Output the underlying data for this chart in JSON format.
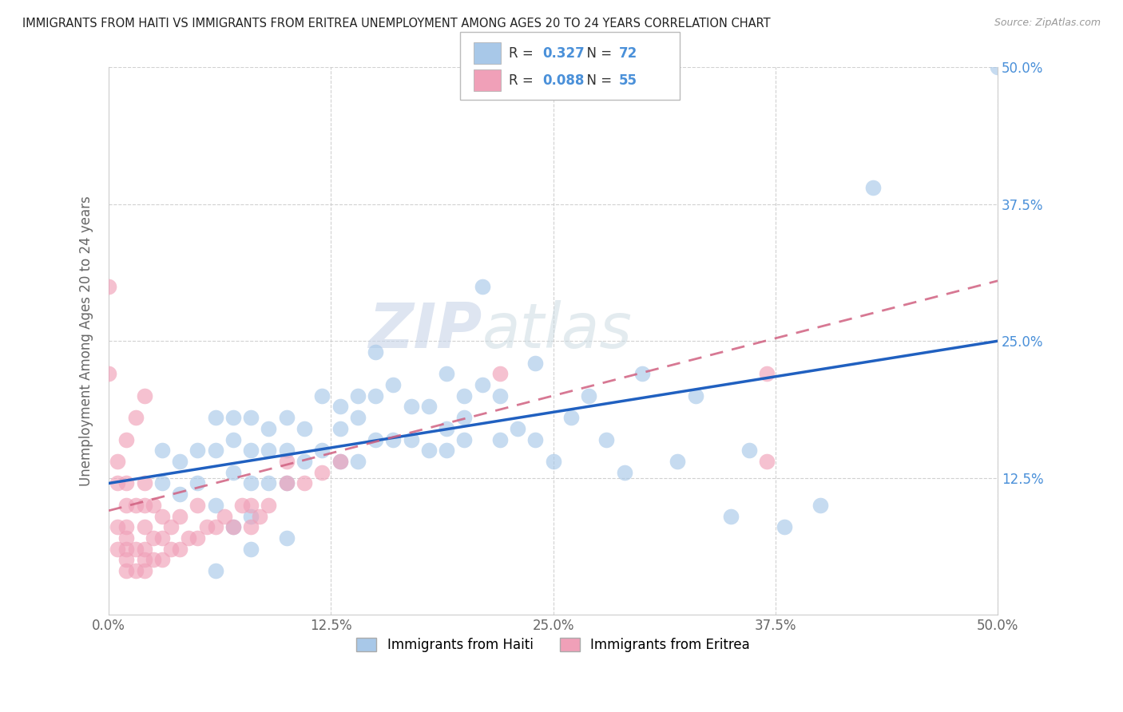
{
  "title": "IMMIGRANTS FROM HAITI VS IMMIGRANTS FROM ERITREA UNEMPLOYMENT AMONG AGES 20 TO 24 YEARS CORRELATION CHART",
  "source": "Source: ZipAtlas.com",
  "ylabel": "Unemployment Among Ages 20 to 24 years",
  "xlim": [
    0,
    0.5
  ],
  "ylim": [
    0,
    0.5
  ],
  "xtick_labels": [
    "0.0%",
    "",
    "",
    "",
    "",
    "12.5%",
    "",
    "",
    "",
    "",
    "25.0%",
    "",
    "",
    "",
    "",
    "37.5%",
    "",
    "",
    "",
    "",
    "50.0%"
  ],
  "xtick_vals": [
    0.0,
    0.025,
    0.05,
    0.075,
    0.1,
    0.125,
    0.15,
    0.175,
    0.2,
    0.225,
    0.25,
    0.275,
    0.3,
    0.325,
    0.35,
    0.375,
    0.4,
    0.425,
    0.45,
    0.475,
    0.5
  ],
  "xtick_major_labels": [
    "0.0%",
    "12.5%",
    "25.0%",
    "37.5%",
    "50.0%"
  ],
  "xtick_major_vals": [
    0.0,
    0.125,
    0.25,
    0.375,
    0.5
  ],
  "right_ytick_labels": [
    "50.0%",
    "37.5%",
    "25.0%",
    "12.5%"
  ],
  "right_ytick_vals": [
    0.5,
    0.375,
    0.25,
    0.125
  ],
  "haiti_color": "#a8c8e8",
  "eritrea_color": "#f0a0b8",
  "haiti_R": 0.327,
  "haiti_N": 72,
  "eritrea_R": 0.088,
  "eritrea_N": 55,
  "haiti_line_color": "#2060c0",
  "eritrea_line_color": "#d06080",
  "watermark_zip": "ZIP",
  "watermark_atlas": "atlas",
  "legend_haiti_label": "Immigrants from Haiti",
  "legend_eritrea_label": "Immigrants from Eritrea",
  "haiti_scatter_x": [
    0.5,
    0.43,
    0.4,
    0.38,
    0.35,
    0.33,
    0.3,
    0.28,
    0.27,
    0.26,
    0.25,
    0.24,
    0.24,
    0.23,
    0.22,
    0.22,
    0.21,
    0.2,
    0.2,
    0.2,
    0.19,
    0.19,
    0.18,
    0.18,
    0.17,
    0.17,
    0.16,
    0.16,
    0.15,
    0.15,
    0.14,
    0.14,
    0.14,
    0.13,
    0.13,
    0.13,
    0.12,
    0.12,
    0.11,
    0.11,
    0.1,
    0.1,
    0.1,
    0.09,
    0.09,
    0.09,
    0.08,
    0.08,
    0.08,
    0.07,
    0.07,
    0.07,
    0.06,
    0.06,
    0.06,
    0.05,
    0.05,
    0.04,
    0.04,
    0.03,
    0.03,
    0.07,
    0.08,
    0.06,
    0.21,
    0.1,
    0.32,
    0.36,
    0.29,
    0.15,
    0.08,
    0.19
  ],
  "haiti_scatter_y": [
    0.5,
    0.39,
    0.1,
    0.08,
    0.09,
    0.2,
    0.22,
    0.16,
    0.2,
    0.18,
    0.14,
    0.23,
    0.16,
    0.17,
    0.16,
    0.2,
    0.21,
    0.18,
    0.2,
    0.16,
    0.17,
    0.15,
    0.19,
    0.15,
    0.19,
    0.16,
    0.21,
    0.16,
    0.2,
    0.16,
    0.2,
    0.18,
    0.14,
    0.19,
    0.17,
    0.14,
    0.2,
    0.15,
    0.17,
    0.14,
    0.18,
    0.15,
    0.12,
    0.17,
    0.15,
    0.12,
    0.18,
    0.15,
    0.12,
    0.18,
    0.16,
    0.13,
    0.18,
    0.15,
    0.1,
    0.15,
    0.12,
    0.14,
    0.11,
    0.15,
    0.12,
    0.08,
    0.06,
    0.04,
    0.3,
    0.07,
    0.14,
    0.15,
    0.13,
    0.24,
    0.09,
    0.22
  ],
  "eritrea_scatter_x": [
    0.0,
    0.0,
    0.005,
    0.005,
    0.005,
    0.01,
    0.01,
    0.01,
    0.01,
    0.01,
    0.01,
    0.01,
    0.015,
    0.015,
    0.015,
    0.02,
    0.02,
    0.02,
    0.02,
    0.02,
    0.02,
    0.025,
    0.025,
    0.025,
    0.03,
    0.03,
    0.03,
    0.035,
    0.035,
    0.04,
    0.04,
    0.045,
    0.05,
    0.05,
    0.055,
    0.06,
    0.065,
    0.07,
    0.075,
    0.08,
    0.08,
    0.085,
    0.09,
    0.1,
    0.1,
    0.11,
    0.12,
    0.13,
    0.22,
    0.37,
    0.37,
    0.005,
    0.01,
    0.015,
    0.02
  ],
  "eritrea_scatter_y": [
    0.3,
    0.22,
    0.06,
    0.08,
    0.12,
    0.04,
    0.05,
    0.06,
    0.07,
    0.08,
    0.1,
    0.12,
    0.04,
    0.06,
    0.1,
    0.04,
    0.05,
    0.06,
    0.08,
    0.1,
    0.12,
    0.05,
    0.07,
    0.1,
    0.05,
    0.07,
    0.09,
    0.06,
    0.08,
    0.06,
    0.09,
    0.07,
    0.07,
    0.1,
    0.08,
    0.08,
    0.09,
    0.08,
    0.1,
    0.08,
    0.1,
    0.09,
    0.1,
    0.12,
    0.14,
    0.12,
    0.13,
    0.14,
    0.22,
    0.22,
    0.14,
    0.14,
    0.16,
    0.18,
    0.2
  ]
}
